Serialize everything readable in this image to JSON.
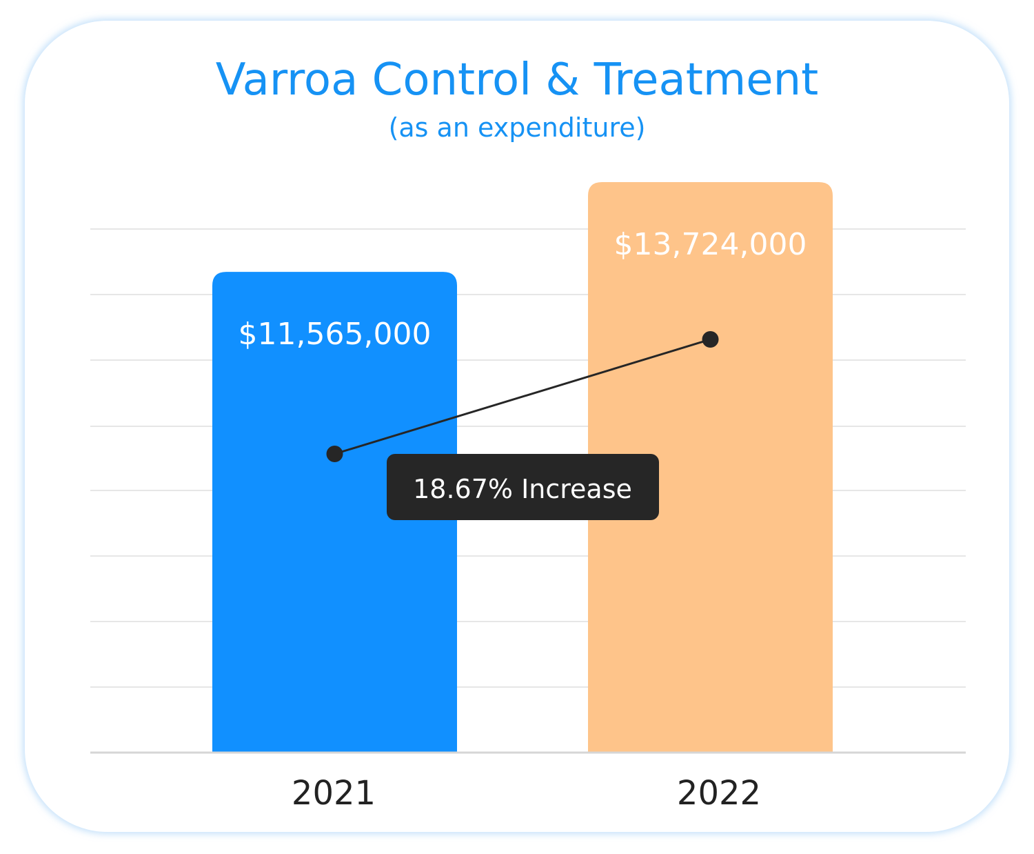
{
  "chart_data": {
    "type": "bar",
    "title": "Varroa Control & Treatment",
    "subtitle": "(as an expenditure)",
    "categories": [
      "2021",
      "2022"
    ],
    "values": [
      11565000,
      13724000
    ],
    "value_labels": [
      "$11,565,000",
      "$13,724,000"
    ],
    "bar_colors": [
      "#1190ff",
      "#fec48a"
    ],
    "grid": true,
    "legend": "none",
    "annotation": {
      "text": "18.67% Increase",
      "percent_change": 18.67,
      "connects": [
        "2021",
        "2022"
      ]
    }
  }
}
